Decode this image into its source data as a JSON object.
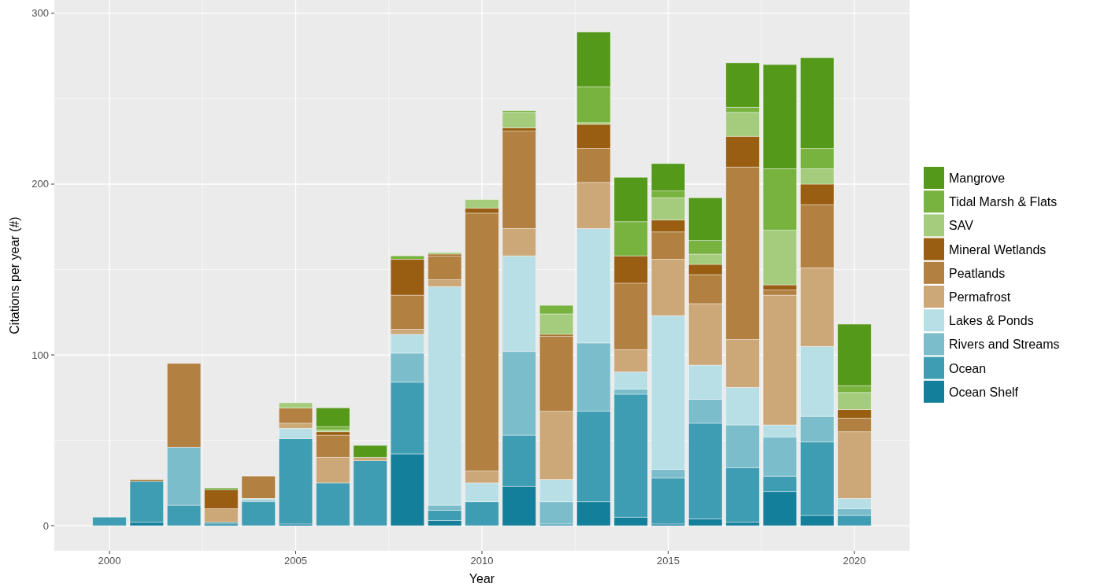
{
  "chart_data": {
    "type": "bar",
    "stacked": true,
    "xlabel": "Year",
    "ylabel": "Citations per year (#)",
    "x": [
      2000,
      2001,
      2002,
      2003,
      2004,
      2005,
      2006,
      2007,
      2008,
      2009,
      2010,
      2011,
      2012,
      2013,
      2014,
      2015,
      2016,
      2017,
      2018,
      2019,
      2020
    ],
    "xlim": [
      1998.52,
      2021.48
    ],
    "xticks": [
      2000,
      2005,
      2010,
      2015,
      2020
    ],
    "ylim": [
      -14.7,
      307.8
    ],
    "yticks": [
      0,
      100,
      200,
      300
    ],
    "grid": true,
    "legend": "right",
    "series": [
      {
        "name": "Ocean Shelf",
        "color": "#137f9a",
        "values": [
          0,
          2,
          0,
          1,
          0,
          1,
          0,
          0,
          42,
          3,
          0,
          23,
          0,
          14,
          5,
          1,
          4,
          2,
          20,
          6,
          0
        ]
      },
      {
        "name": "Ocean",
        "color": "#3f9db3",
        "values": [
          5,
          24,
          12,
          1,
          14,
          50,
          25,
          38,
          42,
          6,
          14,
          30,
          1,
          53,
          72,
          27,
          56,
          32,
          9,
          43,
          6
        ]
      },
      {
        "name": "Rivers and Streams",
        "color": "#7bbdcb",
        "values": [
          0,
          0,
          34,
          0,
          1,
          0,
          0,
          0,
          17,
          3,
          0,
          49,
          13,
          40,
          3,
          5,
          14,
          25,
          23,
          15,
          4
        ]
      },
      {
        "name": "Lakes & Ponds",
        "color": "#b8dfe6",
        "values": [
          0,
          0,
          0,
          0,
          1,
          6,
          0,
          0,
          11,
          128,
          11,
          56,
          13,
          67,
          10,
          90,
          20,
          22,
          7,
          41,
          6
        ]
      },
      {
        "name": "Permafrost",
        "color": "#cca878",
        "values": [
          0,
          0,
          0,
          8,
          0,
          3,
          15,
          2,
          3,
          4,
          7,
          16,
          40,
          27,
          13,
          33,
          36,
          28,
          76,
          46,
          39
        ]
      },
      {
        "name": "Peatlands",
        "color": "#b28040",
        "values": [
          0,
          1,
          49,
          0,
          13,
          9,
          13,
          0,
          20,
          14,
          151,
          57,
          44,
          20,
          39,
          16,
          17,
          101,
          3,
          37,
          8
        ]
      },
      {
        "name": "Mineral Wetlands",
        "color": "#995e12",
        "values": [
          0,
          0,
          0,
          11,
          0,
          0,
          2,
          0,
          21,
          1,
          3,
          2,
          1,
          14,
          16,
          7,
          6,
          18,
          3,
          12,
          5
        ]
      },
      {
        "name": "SAV",
        "color": "#a4cc7c",
        "values": [
          0,
          0,
          0,
          0,
          0,
          3,
          1,
          0,
          0,
          1,
          5,
          9,
          12,
          1,
          0,
          13,
          6,
          14,
          32,
          9,
          10
        ]
      },
      {
        "name": "Tidal Marsh & Flats",
        "color": "#78b33f",
        "values": [
          0,
          0,
          0,
          0,
          0,
          0,
          2,
          0,
          2,
          0,
          0,
          1,
          5,
          21,
          20,
          4,
          8,
          3,
          36,
          12,
          4
        ]
      },
      {
        "name": "Mangrove",
        "color": "#55991a",
        "values": [
          0,
          0,
          0,
          1,
          0,
          0,
          11,
          7,
          0,
          0,
          0,
          0,
          0,
          32,
          26,
          16,
          25,
          26,
          61,
          53,
          36
        ]
      }
    ]
  }
}
